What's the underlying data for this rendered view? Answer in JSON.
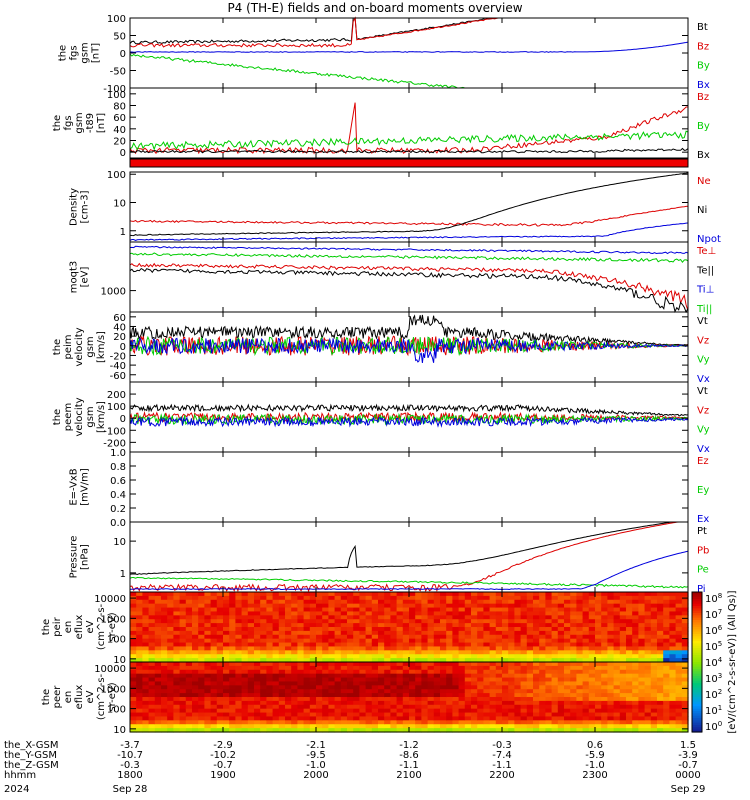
{
  "title": "P4 (TH-E) fields and on-board moments overview",
  "chart_data": [
    {
      "type": "line",
      "ylabel": [
        "the",
        "fgs",
        "gsm",
        "[nT]"
      ],
      "ylim": [
        -100,
        100
      ],
      "ytick_labels": [
        "100",
        "50",
        "0",
        "-50",
        "-100"
      ],
      "series": [
        {
          "name": "Bt",
          "color": "#000000"
        },
        {
          "name": "Bz",
          "color": "#dd0000"
        },
        {
          "name": "By",
          "color": "#00cc00"
        },
        {
          "name": "Bx",
          "color": "#0000dd"
        }
      ]
    },
    {
      "type": "line",
      "ylabel": [
        "the",
        "fgs",
        "gsm",
        "-t89",
        "[nT]"
      ],
      "ylim": [
        -10,
        110
      ],
      "ytick_labels": [
        "100",
        "80",
        "60",
        "40",
        "20",
        "0"
      ],
      "series": [
        {
          "name": "Bz",
          "color": "#dd0000"
        },
        {
          "name": "By",
          "color": "#00cc00"
        },
        {
          "name": "Bx",
          "color": "#000000"
        }
      ]
    },
    {
      "type": "line",
      "ylabel": [
        "Density",
        "[cm-3]"
      ],
      "yscale": "log",
      "ylim": [
        0.4,
        120
      ],
      "ytick_labels": [
        "100",
        "10",
        "1"
      ],
      "series": [
        {
          "name": "Ne",
          "color": "#dd0000"
        },
        {
          "name": "Ni",
          "color": "#000000"
        },
        {
          "name": "Npot",
          "color": "#0000dd"
        }
      ]
    },
    {
      "type": "line",
      "ylabel": [
        "moqt3",
        "[eV]"
      ],
      "yscale": "log",
      "ytick_labels": [
        "1000"
      ],
      "series": [
        {
          "name": "Te⊥",
          "color": "#dd0000"
        },
        {
          "name": "Te||",
          "color": "#000000"
        },
        {
          "name": "Ti⊥",
          "color": "#0000dd"
        },
        {
          "name": "Ti||",
          "color": "#00cc00"
        }
      ]
    },
    {
      "type": "line",
      "ylabel": [
        "the",
        "peim",
        "velocity",
        "gsm",
        "[km/s]"
      ],
      "ylim": [
        -75,
        70
      ],
      "ytick_labels": [
        "60",
        "40",
        "20",
        "0",
        "-20",
        "-40",
        "-60"
      ],
      "series": [
        {
          "name": "Vt",
          "color": "#000000"
        },
        {
          "name": "Vz",
          "color": "#dd0000"
        },
        {
          "name": "Vy",
          "color": "#00cc00"
        },
        {
          "name": "Vx",
          "color": "#0000dd"
        }
      ]
    },
    {
      "type": "line",
      "ylabel": [
        "the",
        "peem",
        "velocity",
        "gsm",
        "[km/s]"
      ],
      "ylim": [
        -280,
        300
      ],
      "ytick_labels": [
        "200",
        "100",
        "0",
        "-100",
        "-200"
      ],
      "series": [
        {
          "name": "Vt",
          "color": "#000000"
        },
        {
          "name": "Vz",
          "color": "#dd0000"
        },
        {
          "name": "Vy",
          "color": "#00cc00"
        },
        {
          "name": "Vx",
          "color": "#0000dd"
        }
      ]
    },
    {
      "type": "line",
      "ylabel": [
        "E=-VxB",
        "[mV/m]"
      ],
      "ylim": [
        0,
        1
      ],
      "ytick_labels": [
        "1.0",
        "0.8",
        "0.6",
        "0.4",
        "0.2",
        "0.0"
      ],
      "series": [
        {
          "name": "Ez",
          "color": "#dd0000"
        },
        {
          "name": "Ey",
          "color": "#00cc00"
        },
        {
          "name": "Ex",
          "color": "#0000dd"
        }
      ]
    },
    {
      "type": "line",
      "ylabel": [
        "Pressure",
        "[nPa]"
      ],
      "yscale": "log",
      "ylim": [
        0.25,
        40
      ],
      "ytick_labels": [
        "10",
        "1"
      ],
      "series": [
        {
          "name": "Pt",
          "color": "#000000"
        },
        {
          "name": "Pb",
          "color": "#dd0000"
        },
        {
          "name": "Pe",
          "color": "#00cc00"
        },
        {
          "name": "Pi",
          "color": "#0000dd"
        }
      ]
    },
    {
      "type": "heatmap",
      "ylabel": [
        "the",
        "peir",
        "en",
        "eflux",
        "eV",
        "(cm^2-s-",
        "sr-eV)"
      ],
      "yscale": "log",
      "ylim": [
        7,
        20000
      ],
      "ytick_labels": [
        "10000",
        "1000",
        "100",
        "10"
      ]
    },
    {
      "type": "heatmap",
      "ylabel": [
        "the",
        "peer",
        "en",
        "eflux",
        "eV",
        "(cm^2-s-",
        "sr-eV)"
      ],
      "yscale": "log",
      "ylim": [
        7,
        20000
      ],
      "ytick_labels": [
        "10000",
        "1000",
        "100",
        "10"
      ]
    }
  ],
  "colorbar": {
    "title": "[eV/(cm^2-s-sr-eV)] (All Qs)]",
    "tick_labels": [
      "10^8",
      "10^7",
      "10^6",
      "10^5",
      "10^4",
      "10^3",
      "10^2",
      "10^1",
      "10^0"
    ]
  },
  "x_axis": {
    "row_labels": [
      "the_X-GSM",
      "the_Y-GSM",
      "the_Z-GSM",
      "hhmm",
      "2024"
    ],
    "ticks": [
      {
        "x": "-3.7",
        "y": "-10.7",
        "z": "-0.3",
        "hhmm": "1800",
        "date": "Sep 28"
      },
      {
        "x": "-2.9",
        "y": "-10.2",
        "z": "-0.7",
        "hhmm": "1900",
        "date": ""
      },
      {
        "x": "-2.1",
        "y": "-9.5",
        "z": "-1.0",
        "hhmm": "2000",
        "date": ""
      },
      {
        "x": "-1.2",
        "y": "-8.6",
        "z": "-1.1",
        "hhmm": "2100",
        "date": ""
      },
      {
        "x": "-0.3",
        "y": "-7.4",
        "z": "-1.1",
        "hhmm": "2200",
        "date": ""
      },
      {
        "x": "0.6",
        "y": "-5.9",
        "z": "-1.0",
        "hhmm": "2300",
        "date": ""
      },
      {
        "x": "1.5",
        "y": "-3.9",
        "z": "-0.7",
        "hhmm": "0000",
        "date": "Sep 29"
      }
    ]
  }
}
